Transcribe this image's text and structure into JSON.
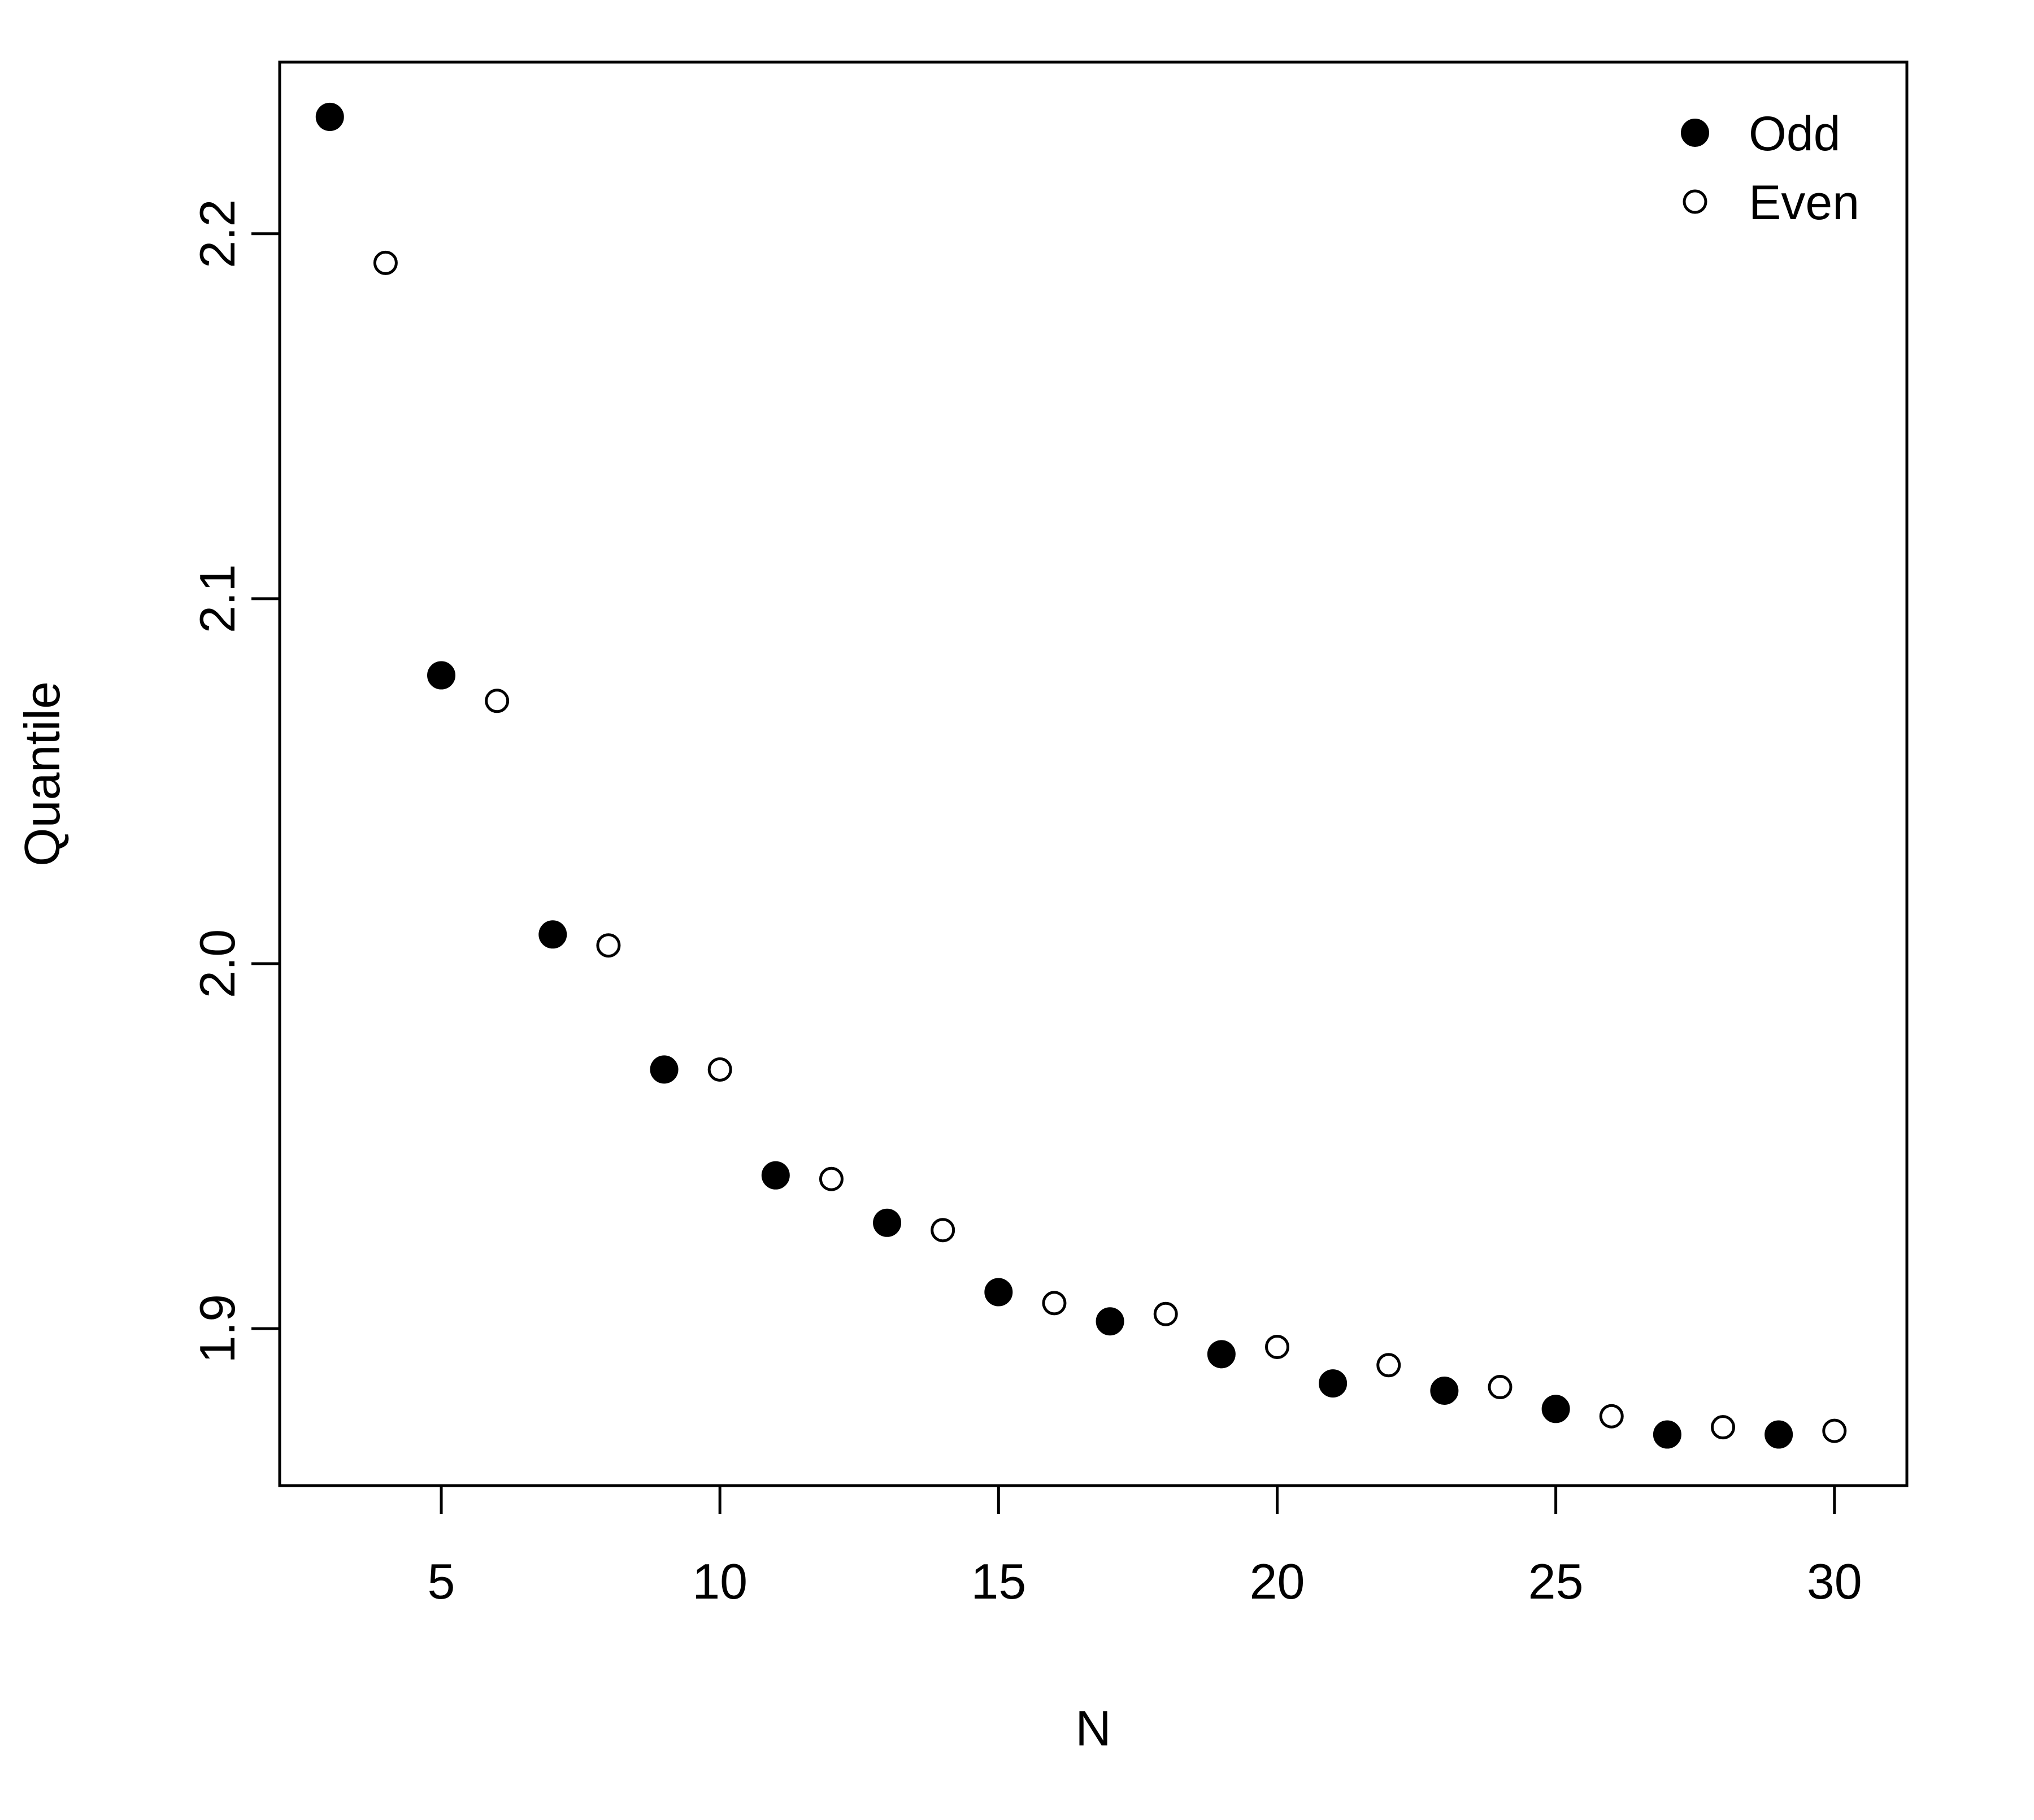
{
  "chart_data": {
    "type": "scatter",
    "title": "",
    "xlabel": "N",
    "ylabel": "Quantile",
    "xlim": [
      2.1,
      31.3
    ],
    "ylim": [
      1.857,
      2.247
    ],
    "x_ticks": [
      5,
      10,
      15,
      20,
      25,
      30
    ],
    "x_tick_labels": [
      "5",
      "10",
      "15",
      "20",
      "25",
      "30"
    ],
    "y_ticks": [
      1.9,
      2.0,
      2.1,
      2.2
    ],
    "y_tick_labels": [
      "1.9",
      "2.0",
      "2.1",
      "2.2"
    ],
    "grid": false,
    "legend": {
      "position": "top-right"
    },
    "series": [
      {
        "name": "Odd",
        "marker": "filled-circle",
        "color": "#000000",
        "x": [
          3,
          5,
          7,
          9,
          11,
          13,
          15,
          17,
          19,
          21,
          23,
          25,
          27,
          29
        ],
        "y": [
          2.232,
          2.079,
          2.008,
          1.971,
          1.942,
          1.929,
          1.91,
          1.902,
          1.893,
          1.885,
          1.883,
          1.878,
          1.871,
          1.871
        ]
      },
      {
        "name": "Even",
        "marker": "open-circle",
        "color": "#000000",
        "x": [
          4,
          6,
          8,
          10,
          12,
          14,
          16,
          18,
          20,
          22,
          24,
          26,
          28,
          30
        ],
        "y": [
          2.192,
          2.072,
          2.005,
          1.971,
          1.941,
          1.927,
          1.907,
          1.904,
          1.895,
          1.89,
          1.884,
          1.876,
          1.873,
          1.872
        ]
      }
    ]
  }
}
